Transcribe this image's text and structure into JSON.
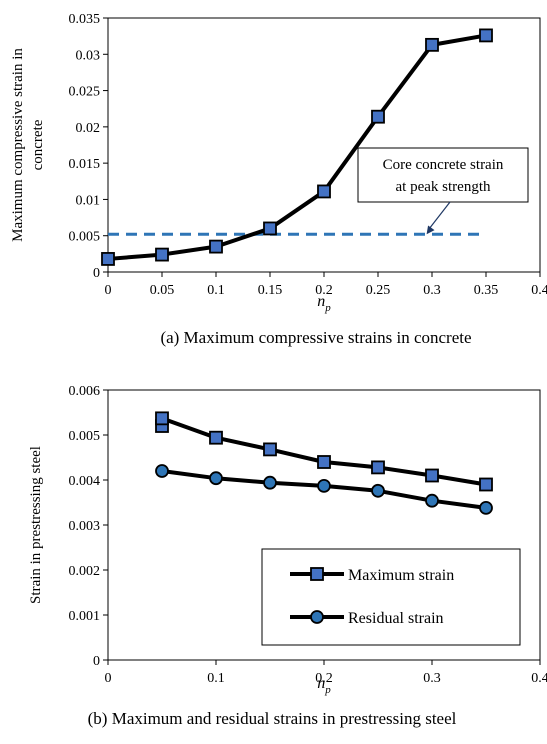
{
  "charts": [
    {
      "type": "line",
      "caption": "(a) Maximum compressive strains in concrete",
      "ylabel_lines": [
        "Maximum compressive strain in",
        "concrete"
      ],
      "xlabel_main": "n",
      "xlabel_sub": "p",
      "x_ticks": [
        "0",
        "0.05",
        "0.1",
        "0.15",
        "0.2",
        "0.25",
        "0.3",
        "0.35",
        "0.4"
      ],
      "y_ticks": [
        "0",
        "0.005",
        "0.01",
        "0.015",
        "0.02",
        "0.025",
        "0.03",
        "0.035"
      ],
      "xlim": [
        0,
        0.4
      ],
      "ylim": [
        0,
        0.035
      ],
      "grid": false,
      "series": [
        {
          "marker": "square",
          "color": "#4472C4",
          "x": [
            0,
            0.05,
            0.1,
            0.15,
            0.2,
            0.25,
            0.3,
            0.35
          ],
          "y": [
            0.0018,
            0.0024,
            0.0035,
            0.006,
            0.0111,
            0.0214,
            0.0313,
            0.0326
          ]
        }
      ],
      "reference_line": {
        "y": 0.0052,
        "x_range": [
          0,
          0.35
        ],
        "color": "#2E75B6",
        "style": "dashed"
      },
      "annotation": {
        "lines": [
          "Core concrete strain",
          "at peak strength"
        ],
        "arrow_to": [
          0.295,
          0.0052
        ]
      }
    },
    {
      "type": "line",
      "caption": "(b) Maximum and residual strains in prestressing steel",
      "ylabel_lines": [
        "Strain in prestressing steel"
      ],
      "xlabel_main": "n",
      "xlabel_sub": "p",
      "x_ticks": [
        "0",
        "0.1",
        "0.2",
        "0.3",
        "0.4"
      ],
      "y_ticks": [
        "0",
        "0.001",
        "0.002",
        "0.003",
        "0.004",
        "0.005",
        "0.006"
      ],
      "xlim": [
        0,
        0.4
      ],
      "ylim": [
        0,
        0.006
      ],
      "grid": false,
      "legend_position": "lower-right",
      "series": [
        {
          "name": "Maximum strain",
          "marker": "square",
          "color": "#4472C4",
          "x": [
            0.05,
            0.05,
            0.1,
            0.15,
            0.2,
            0.25,
            0.3,
            0.35
          ],
          "y": [
            0.0052,
            0.00537,
            0.00494,
            0.00468,
            0.0044,
            0.00428,
            0.0041,
            0.0039
          ]
        },
        {
          "name": "Residual strain",
          "marker": "circle",
          "color": "#2E75B6",
          "x": [
            0.05,
            0.1,
            0.15,
            0.2,
            0.25,
            0.3,
            0.35
          ],
          "y": [
            0.0042,
            0.00404,
            0.00394,
            0.00387,
            0.00376,
            0.00354,
            0.00338
          ]
        }
      ]
    }
  ]
}
